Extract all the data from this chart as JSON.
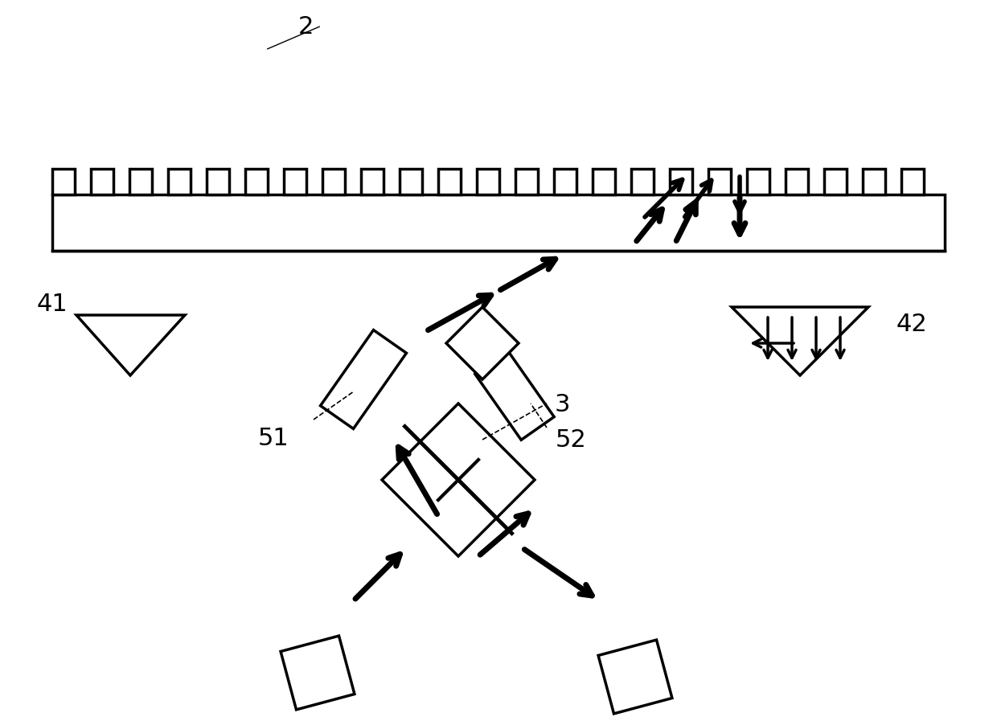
{
  "bg_color": "#ffffff",
  "line_color": "#000000",
  "figsize": [
    12.4,
    9.03
  ],
  "dpi": 100,
  "label_3": "3",
  "label_51": "51",
  "label_52": "52",
  "label_41": "41",
  "label_42": "42",
  "label_2": "2"
}
